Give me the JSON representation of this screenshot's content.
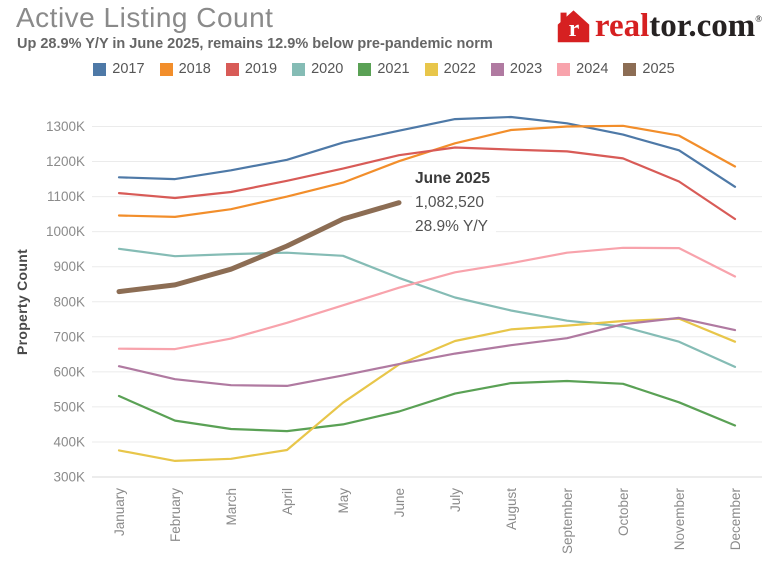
{
  "header": {
    "title": "Active Listing Count",
    "subtitle": "Up 28.9% Y/Y in June 2025, remains 12.9% below pre-pandemic norm",
    "logo": {
      "brand_red": "real",
      "brand_dark": "tor.com",
      "registered": "®",
      "brand_color": "#d62021",
      "text_dark_color": "#262222"
    }
  },
  "annotation": {
    "title": "June 2025",
    "value": "1,082,520",
    "yoy": "28.9% Y/Y"
  },
  "axis": {
    "y_label": "Property Count",
    "y_ticks": [
      "1300K",
      "1200K",
      "1100K",
      "1000K",
      "900K",
      "800K",
      "700K",
      "600K",
      "500K",
      "400K",
      "300K"
    ]
  },
  "chart_data": {
    "type": "line",
    "title": "Active Listing Count",
    "xlabel": "",
    "ylabel": "Property Count",
    "ylim": [
      300000,
      1300000
    ],
    "grid": true,
    "legend_position": "top",
    "categories": [
      "January",
      "February",
      "March",
      "April",
      "May",
      "June",
      "July",
      "August",
      "September",
      "October",
      "November",
      "December"
    ],
    "series": [
      {
        "name": "2017",
        "color": "#4e79a7",
        "width": 2.2,
        "values": [
          1155000,
          1150000,
          1175000,
          1205000,
          1254000,
          1288000,
          1321000,
          1327000,
          1309000,
          1277000,
          1232000,
          1128000
        ]
      },
      {
        "name": "2018",
        "color": "#f28e2b",
        "width": 2.2,
        "values": [
          1046000,
          1042000,
          1064000,
          1100000,
          1140000,
          1201000,
          1252000,
          1290000,
          1300000,
          1302000,
          1274000,
          1186000
        ]
      },
      {
        "name": "2019",
        "color": "#d85b57",
        "width": 2.2,
        "values": [
          1110000,
          1096000,
          1113000,
          1145000,
          1180000,
          1218000,
          1240000,
          1234000,
          1229000,
          1209000,
          1143000,
          1036000
        ]
      },
      {
        "name": "2020",
        "color": "#85bcb5",
        "width": 2.2,
        "values": [
          951000,
          930000,
          936000,
          940000,
          931000,
          868000,
          812000,
          775000,
          746000,
          729000,
          686000,
          614000
        ]
      },
      {
        "name": "2021",
        "color": "#5aa155",
        "width": 2.2,
        "values": [
          531000,
          461000,
          437000,
          431000,
          450000,
          487000,
          538000,
          568000,
          574000,
          566000,
          513000,
          447000
        ]
      },
      {
        "name": "2022",
        "color": "#e8c64a",
        "width": 2.2,
        "values": [
          376000,
          346000,
          352000,
          377000,
          512000,
          621000,
          688000,
          721000,
          732000,
          745000,
          752000,
          686000
        ]
      },
      {
        "name": "2023",
        "color": "#b07aa1",
        "width": 2.2,
        "values": [
          616000,
          579000,
          562000,
          560000,
          590000,
          622000,
          652000,
          676000,
          696000,
          736000,
          754000,
          719000
        ]
      },
      {
        "name": "2024",
        "color": "#f8a3ac",
        "width": 2.2,
        "values": [
          666000,
          665000,
          695000,
          740000,
          790000,
          840000,
          884000,
          910000,
          940000,
          954000,
          953000,
          872000
        ]
      },
      {
        "name": "2025",
        "color": "#8c6d54",
        "width": 5,
        "values": [
          829000,
          848000,
          893000,
          959000,
          1036000,
          1082520
        ]
      }
    ]
  }
}
